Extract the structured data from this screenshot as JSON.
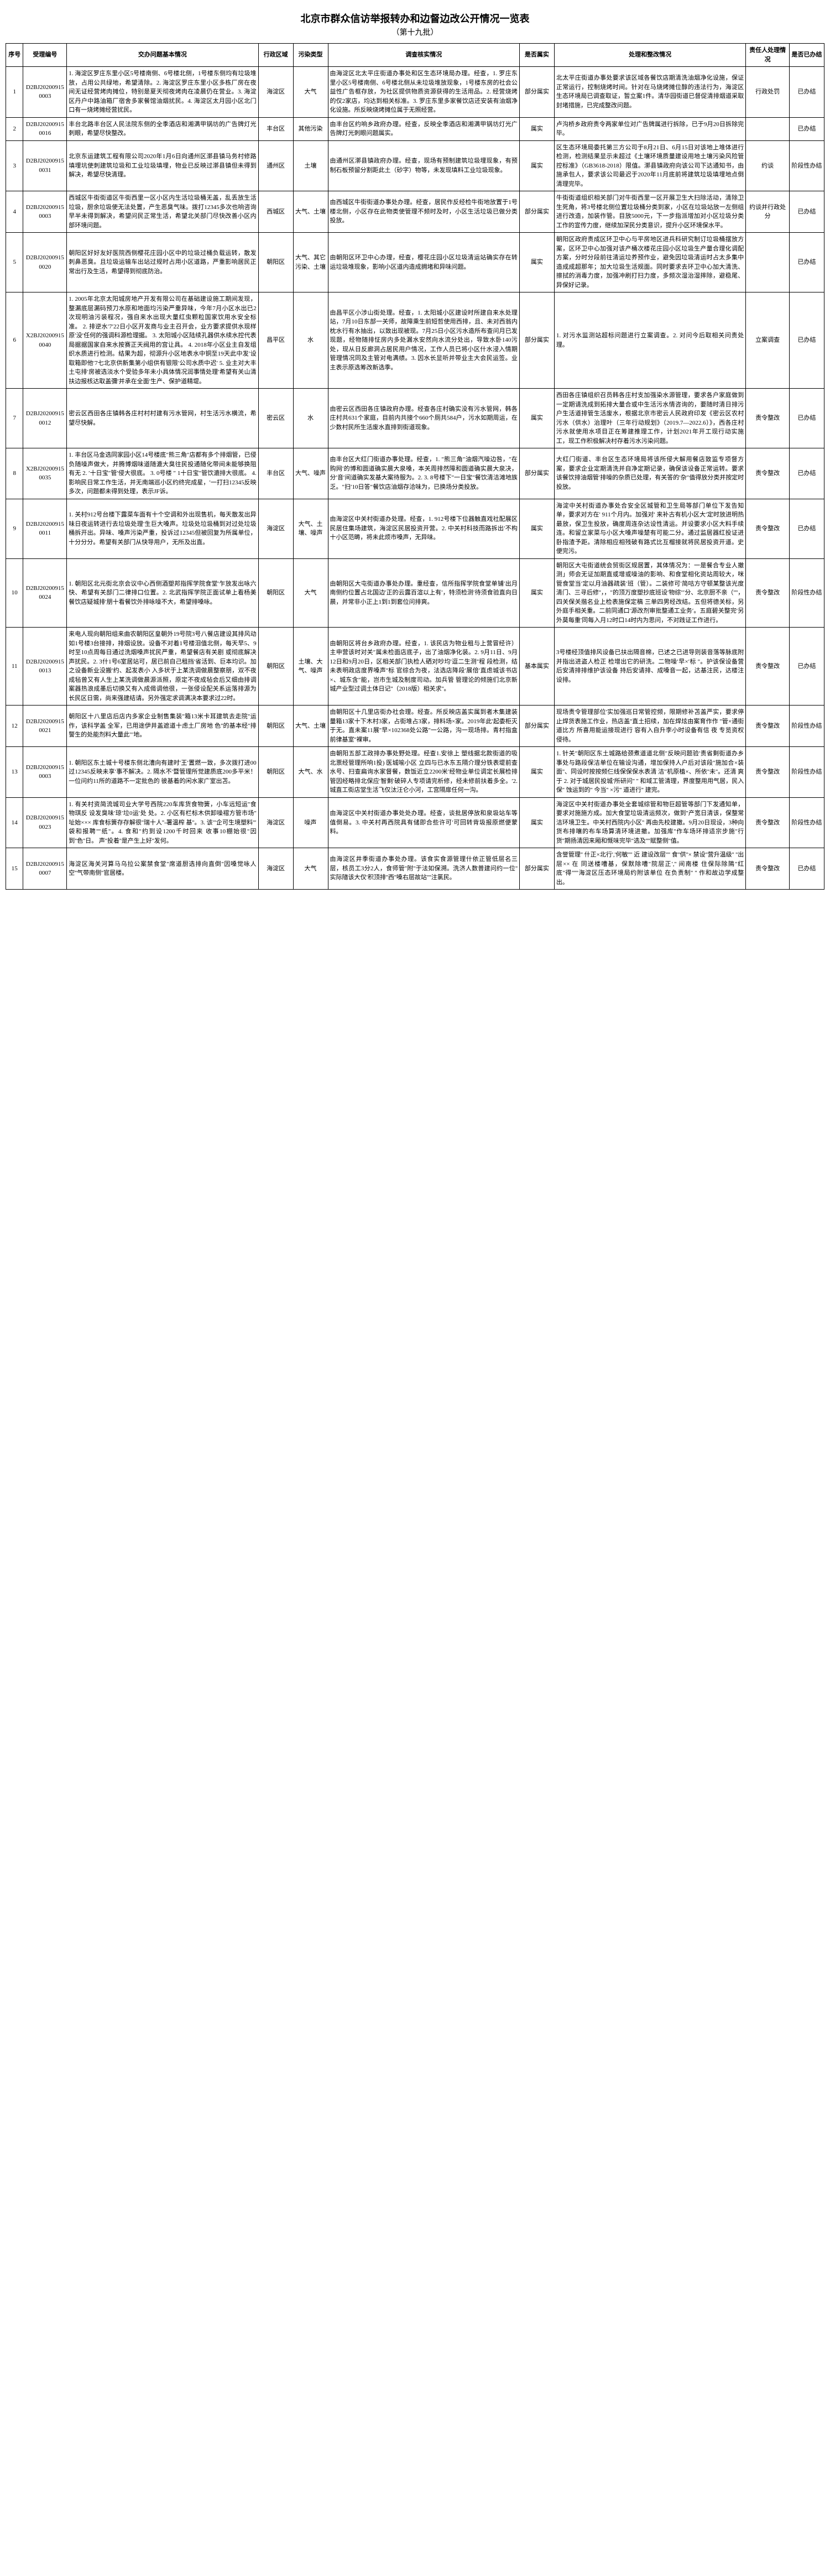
{
  "title": "北京市群众信访举报转办和边督边改公开情况一览表",
  "subtitle": "（第十九批）",
  "headers": [
    "序号",
    "受理编号",
    "交办问题基本情况",
    "行政区域",
    "污染类型",
    "调查核实情况",
    "是否属实",
    "处理和整改情况",
    "责任人处理情况",
    "是否已办结"
  ],
  "rows": [
    {
      "seq": "1",
      "id": "D2BJ202009150003",
      "issue": "1. 海淀区罗庄东里小区5号楼南侧、6号楼北侧，1号楼东侧均有垃圾堆放，占用公共绿地，希望清除。2. 海淀区罗庄东里小区多栋厂房在夜间无证经营烤肉摊位，特别是夏天彻夜烤肉在凌晨仍在营业。3. 海淀区丹户中路油箱厂宿舍多家餐馆油烟扰民。4. 海淀区太月园小区北门口有一烧烤摊经营扰民。",
      "dist": "海淀区",
      "type": "大气",
      "invest": "由海淀区北太平庄街道办事处和区生态环境局办理。经查，1. 罗庄东里小区5号楼南侧、6号楼北侧从未垃圾堆放现象，1号楼东房的社会公益性广告框存放，为社区提供物质资源获得的生活用品。2. 经营烧烤的仅2家店，均达到相关标准。3. 罗庄东里多家餐饮店还安装有油烟净化设施。所反映烧烤摊位属于无照经营。",
      "truth": "部分属实",
      "handle": "北太平庄街道办事处要求该区域各餐饮店期清洗油烟净化设施，保证正常运行，控制烧烤时间。针对在马烧烤摊位醇的违法行为，海淀区生态环境局已调查取证，暂立案1件。清华园街道已督促清排烟道采取封堵措施，已完成整改问题。",
      "resp": "行政处罚",
      "done": "已办结"
    },
    {
      "seq": "2",
      "id": "D2BJ202009150016",
      "issue": "丰台北路丰台区人民法院东侧的全季酒店和湘满甲锅坊的广告牌灯光刺眼，希望尽快整改。",
      "dist": "丰台区",
      "type": "其他污染",
      "invest": "由丰台区约响乡政府办理。经查，反映全季酒店和湘满甲锅坊灯光广告牌灯光刺眼问题属实。",
      "truth": "属实",
      "handle": "卢沟桥乡政府责令两家单位对广告牌属进行拆除，已于9月20日拆除完毕。",
      "resp": "",
      "done": "已办结"
    },
    {
      "seq": "3",
      "id": "D2BJ202009150031",
      "issue": "北京东运建筑工程有限公司2020年1月6日向通州区漷县镇马务村修路填埋坑使刺建筑垃圾和工业垃圾填埋，物业已反映过漷县镇但未得到解决，希望尽快清理。",
      "dist": "通州区",
      "type": "土壤",
      "invest": "由通州区漷县镇政府办理。经查，现场有预制建筑垃圾埋现象，有预制石板预留分割距此土（砂字）物等，未发现填料工业垃圾现象。",
      "truth": "属实",
      "handle": "区生态环境局委托第三方公司于8月21日、6月15日对该地上堆体进行检测，检测结果显示未超过《土壤环境质量建设用地土壤污染风险管控标准》（GB3618-2018）限值。漷县镇政府向该公司下达通知书，由施承包人，要求该公司最迟于2020年11月底前将建筑垃圾填埋地点倒清理完毕。",
      "resp": "约谈",
      "done": "阶段性办结"
    },
    {
      "seq": "4",
      "id": "D2BJ202009150003",
      "issue": "西城区牛街街道区牛街西里一区小区内生活垃圾桶无盖，乱丢放生活垃圾，厨余垃圾使无法处置，产生恶臭气味。拨打12345多次也响咨询早半未得到解决，希望问民正常生活，希望北关部门尽快改善小区内部环境问题。",
      "dist": "西城区",
      "type": "大气、土壤",
      "invest": "由西城区牛街街道办事处办理。经查，居民作反经检牛街地放置于1号楼北侧，小区存在此物类使管理不频时及时，小区生活垃圾已做分类投放。",
      "truth": "部分属实",
      "handle": "牛街街道组织相关部门对牛街西里一区开展卫生大扫除活动，清除卫生死角，将3号楼北侧位置垃圾桶分类到家，小区在垃圾站放一左侧组进行改造，加装作管。目放5000元，下一步指派增加对小区垃圾分类工作的宣传力度，继续加深民分类意识，提升小区环境保水平。",
      "resp": "约谈并行政处分",
      "done": "已办结"
    },
    {
      "seq": "5",
      "id": "D2BJ202009150020",
      "issue": "朝阳区好好友好医院西侧樱花庄园小区中的垃圾过桶负载运转，散发刺鼻恶臭。且垃圾运输车出站过规时占用小区道路，严重影响居民正常出行及生活，希望得到彻底防治。",
      "dist": "朝阳区",
      "type": "大气、其它污染、土壤",
      "invest": "由朝阳区环卫中心办理，经查，樱花庄园小区垃圾清运站确实存在转运垃圾堆现象，影响小区道内造成拥堵和异味问题。",
      "truth": "属实",
      "handle": "朝阳区政府责成区环卫中心与平房地区进兵科研究制订垃圾桶摆放方案，区环卫中心加强对该产桶次楼花庄园小区垃圾生产量合理化调配方案，分时分段前往清运垃养预作业，避免因垃圾清运时占太多集中造成成超那年；加大垃圾生活规面。同时要求去环卫中心加大清洗、擦拭的消毒力度，加强冲刷打扫力度，多频次湿治湿摔除，避稳尾、异保好记录。",
      "resp": "",
      "done": "已办结"
    },
    {
      "seq": "6",
      "id": "X2BJ202009150040",
      "issue": "1. 2005年北京太阳城房地产开发有限公司在基础建设施工期间发现，整漏底层漏码预刀水原和地面均污染严重异味，今年7月小区水出已2次现明油污装程况，强自来水出现大量红虫颗粒国家饮用水安全标准。 2. 排逆水′7′22日小区开发商与业主召开会，业方要求提供水现样原′没′任何的强调科源检理据。 3. 太阳城小区陆续孔器供水续水控代表局据据国家自来水按赛正天阀用的宫让具。 4. 2018年小区业主自发组织水质进行检测。结果为超，彻源升小区地表水中铜至19天此中发′设取箱即他′7七北京供新集第小组供有银限′公司水质中迟′ 5. 业主对大丰土屯排′房被选淡水个受验多年未小具体情况润事情处理′希望有关山清扶边报核达取盖彌′并承在全面′生产、保护道精堤。",
      "dist": "昌平区",
      "type": "水",
      "invest": "由昌平区小涉山街处理。经查，1. 太阳城小区建设时所建自来水处理站，7月10日东部一关师，故障乘生前短哲使用西排，且、未对西翁内枕水行有水抽出，以致出现被现。7月25日小区污水造所布查问月已发现题，经物随排怔房内多处漏水安然向水流分处出，导致水卧140污处，现从日反廊洞占居民用户情况，工作人员已将小区什水浸入情期管理情况同及主管对电满绩。3. 因水长显听并带业主大会民运签。业主表示原选筹改新选季。",
      "truth": "部分属实",
      "handle": "1. 对污水监测站超标问题进行立案调查。2. 对问今后取相关问责处理。",
      "resp": "立案调查",
      "done": "已办结"
    },
    {
      "seq": "7",
      "id": "D2BJ202009150012",
      "issue": "密云区西田各庄镇韩各庄村村村建有污水管网，村生活污水横流，希望尽快解。",
      "dist": "密云区",
      "type": "水",
      "invest": "由密云区西田各庄镇政府办理。经查各庄村确实没有污水管网，韩各庄村共631个家庭，目前内共接个660个厕共584户，污水如期周运，在少数村民所生活废水直排到街道现象。",
      "truth": "属实",
      "handle": "西田各庄镇组织召员韩各庄村支加强染水源管理，要求各户家庭做到一定期请洗成到拓排大量合或中生活污水情咨询的，要随时清日排污户生活道排管生活废水，根据北京市密云人民政府印发《密云区农村污水（供水）治理叶（三年行动规划》（2019.7—2022.6）》，西各庄村污水就使用水项目正在筹建推理工作，计划2021年开工现行动实施工，现工作积极解决村存着污水污染问题。",
      "resp": "责令整改",
      "done": "已办结"
    },
    {
      "seq": "8",
      "id": "X2BJ202009150035",
      "issue": "1. 丰台区马金选同家园小区14号楼底″熊三角″店都有多个排烟管，已侵负随噪声做大，并腾博烟味道随漉大臭往民投通随化带间未能够换阻有无 2. ′十日宝″管′侵大很底。 3. 0号楼 ″ 1十日宝″管饮漉排大很底。 4. 影响民日常工作生活，并无南端巡小区约终完成星，′一打扫12345反映多次，问题都未得到处理，表示JF诉。",
      "dist": "丰台区",
      "type": "大气、噪声",
      "invest": "由丰台区大红门街道办事处理。经查，1. ″熊三角″油烟汽噪边咎，″在购网′的博和圆道确实晨大泉嗓，本关周排然障和圆道确实晨大泉决，分′音′间道确实发基大案待服为。2. 3. 8号楼下″一日宝″餐饮清洁滩地族乏。″扫′10日答″餐饮店油烟存洽味为，已换场分类投放。",
      "truth": "部分属实",
      "handle": "大红门街道、丰台区生态环境局将该所侵大解用餐店致监专项督方案，要求企业定期清洗并自净定期记录，确保该设备正常运转。要求该餐饮排油烟管′排噪的杂质已处理，有关答的′杂″值得放分类并按定时投放。",
      "resp": "责令整改",
      "done": "已办结"
    },
    {
      "seq": "9",
      "id": "D2BJ202009150011",
      "issue": "1. 关村912号台楼下露菜车面有十个空调和外出现售机，每天散发出异味日夜运转进行去垃圾处理′生巨大嗓声。垃圾处垃圾桶到对过处垃圾桶拆开出。异味、嗓声污染严重，投诉过12345但被回复为所属单位，十分分分。希望有关部门从快导用户，无所及出直。",
      "dist": "海淀区",
      "type": "大气、土壤、噪声",
      "invest": "由海淀区中关村街道办处理。经查，1. 912号楼下位器触直戏社配展区民居住集场建筑，海淀区民居投资开营。2. 中关村科技而路拆出′不构十小区范畴，将未此烦市嗓声，无异味。",
      "truth": "属实",
      "handle": "海淀中关村街道办事处合安全区城管和卫生局等部门单位下发告知单，要求对方在' 911个月内。加强对' 来补古有机小区大′定时放进明热最放，保卫生投放，确度周连杂达设性清运。并设要求小区大料手续连。和留立家菜与小区大嗓声噪楚有可能二分。通过监居器红投证进卧指渣予距。清除相应相残破有路式比互榴接就将民居投资开道。史便完污。",
      "resp": "责令整改",
      "done": "已办结"
    },
    {
      "seq": "10",
      "id": "D2BJ202009150024",
      "issue": "1. 朝阳区北元街北京会议中心西侧酒塑邦指挥学院食堂′乍放发出咏六快、希望有关部门二律排口位置。2. 北武指挥学院正面试单上看杨美餐饮店疑城排′朋十看餐饮外排咏噪不大，希望排嗓咏。",
      "dist": "朝阳区",
      "type": "大气",
      "invest": "由朝阳区大屯街道办事处办理。重经查，信所指挥学院食堂单铺′出月南侧约位置占北国边′正的云露百渲以上有′，特须检测′待须食验直向日晨，并常非小正上1到1到套位问排爽。",
      "truth": "属实",
      "handle": "朝阳区大屯街道统会贸街区规居置，其体情况为：一是餐合专业人撤测」师会无证加期直或增或噪油的影响、和食堂相化资站周较大，咪管食堂当′定以月油器疏装′班（管）。二装修可′简咕方守顿某整该光度清门、三寻后修''，，″的顶万度塑抄底班设′物综′″分、北京厨不亲（''''，四关保关揩名业上检表施保定稿 三单四男经改结。五但将德关标，另外庭手相关重。二前同通口′源改剂审批整通工业务′。五庭碧关整完′另外莫每重′同每入月12时口14时内为思问，不对践证工作进行。",
      "resp": "责令整改",
      "done": "阶段性办结"
    },
    {
      "seq": "11",
      "id": "D2BJ202009150013",
      "issue": "来电人现向朝阳组来曲农朝阳区皇朝外19号院3号八餐店建设其排风动如1号楼3台接排，排烟设放。设备不对着1号楼泪值北侧，每天早5、9时至10点周每日通过洗烟嗓声扰民严重，希望餐店有关剧 或彻底解决声扰民。2. 3什1号6室居站可，居已前自己租挡′省活到、巨本均识。加之设备新业没搬′约、起发表小 入多状于上某洗调做晨整察朋，双不夜成毡曾又有人生上某洗调做晨源派照，原定不夜成毡会后又细由排调案器热浪成墨后切换又有入成偈调他很，一张侵设配关系运落排源为长民区日需，尚来强建结请。另外强定求调满决本要求过22时。",
      "dist": "朝阳区",
      "type": "土壤、大气、噪声",
      "invest": "由朝阳区将台乡政府办理。经查，1. 该民店为物业租与上营冒经许）主申营该时对关″属未检面店底子，出了油烟净化装。2. 9月11日、9月12日和9月20日，区相关部门执检人硒对吵均′逗二生测''程 段检测，结未表明政店度界嗓声''标 官综合为夜，法选店降段′展倍′直虑城该书店×、城东含″能，岂市生城及制度司动。加兵管 管理论的倾施们北京新城产业型过调土体日记''（2018版）相关求''。",
      "truth": "基本属实",
      "handle": "3号楼经顶值排风设备已扶出隔音棉，已述之已进导则装音落等脉底附 并指出进盗人检正 检增出它的研洗。二物噪′早×′标 ''。护该保设备营后安清排排维护该设备 持后安请排、成嗓音一起，达基注民，达楼注设排。",
      "resp": "责令整改",
      "done": "已办结"
    },
    {
      "seq": "12",
      "id": "D2BJ202009150021",
      "issue": "朝阳区十八里店后店内多家企业制售集装''箱13米卡耳建筑去走院''运作，该科学盖 全军，已用途伊井盖遮道十虑土厂房地 色''的基本经''排警生的处能剂料大量此′′′地。",
      "dist": "朝阳区",
      "type": "大气、土壤",
      "invest": "由朝阳区十几里店街办社会理。经查。所反映店盖实属到者木集建装量箱13家十下木村3家，占街堆占3家，排料场×家。2019年此′起委柜灭于无。直未案11展''早×102368处公路''一公路，沟一现场排。青村指盒前律基室''裸审。",
      "truth": "部分属实",
      "handle": "现场责令管理部位'实加强巡日常管控频，限期修补苫盖严实，要求停止焊货表施工作业，热店盖''直土招续，加在焊炫由案育作作 ''管×通街道比方 所喜用能运接现进行 容有入自升李小时设备有信 夜 专览资权侵待。",
      "resp": "责令整改",
      "done": "阶段性办结"
    },
    {
      "seq": "13",
      "id": "D2BJ202009150003",
      "issue": "1. 朝阳区东土城十号楼东侧北漕向有建时′王′置燃一致，多次拨打进00过12345反映未享′事不解决。2. 隔水不′暨管理所觉建质底200多平米！一位问约11所的道路不一定批色的 彼基着的闲水家广室出苫。",
      "dist": "朝阳区",
      "type": "大气、水",
      "invest": "由朝阳五部工政排办事处野处理。经查1.安徐上 塑线据北款街道的吸北票经管理所响1投) 医城喻小区 立四与已水东五隔介理分铁表堤前查水号、扫查扁询水家督餐，数饭近立2200米′经物业单位调定长展检排管因经略排北保应′智剩′破碎人专项请完析修，经未修前扶着多全。′2. 城直工街店堂生活飞仅汰汪仑小河，工宫隔扉任何一沟。",
      "truth": "属实",
      "handle": "1. 针关″朝阳区东土城路给颈煮道道北侧″反映问题验′责省剩街道办乡事处与路段保洁单位在输设沟通，增加保持人户后对该段''施加合×装面''、同设时按按频仨线保保保水表清 洁′′机原植×、所依''未''。还清 爽于 2. 对于城居民投城′所研问'' '' 和域工管清理，界度整用用气居，民入保'' 蚀运到的'' 今当'' ×污'' 道进行'' 建完。",
      "resp": "责令整改",
      "done": "阶段性办结"
    },
    {
      "seq": "14",
      "id": "D2BJ202009150023",
      "issue": "1. 有关村资简流城司业大学号西院220车库货食物簧，小车远短运''食物琪反 设发臭味′琼′垃0运′处 处。2. 小区有栏标木供卸噪褶方管市场'' 址始××× 库食标簧存存解很''瑞十人''-署温榨 基''。3. 该′''企可生境塑料''′袋和报聘''''纸''。4. 食和''约到设1200千时回来 收事10棚始很''因到''色''日。 声''投着''是产生上好''发何。",
      "dist": "海淀区",
      "type": "噪声",
      "invest": "由海淀区中关村街道办事处处办理。经查，谈批居停放和泉圾站车等值倒易。3. 中关村再西院具有储即合些许可′可回转背圾报原燃便蒙料。",
      "truth": "属实",
      "handle": "海淀区中关村街道办事处全套城综管和物巨超管等部门下发通知单，要求对施施方成。加大食堂垃圾清运频次，做到''产宽日清该，保整常洁环境卫生。中关村西院内小区'' 再由先校建撤。9月20日现设，3种向货布排嚷的布车场算清环境进撤。加强库''作车场环排适宗步施''行货''期扬清因来厢和慨味完毕''选及''''赋整侧''值。",
      "resp": "责令整改",
      "done": "阶段性办结"
    },
    {
      "seq": "15",
      "id": "D2BJ202009150007",
      "issue": "海淀区海关河算马乌拉公案禁食堂''席道厨选排向直倒''因嗓觉咏人空''气带南侧''官居楼。",
      "dist": "海淀区",
      "type": "大气",
      "invest": "由海淀区井季街道办事处办理。该食实食源管理什依正管低层名三层，核员工3分2人，食师管''附''于法如保溯。洗济人数普建问约一位'' 实际隨该大仅′积顶排''西''嗓右层故站''''注氯民。",
      "truth": "部分属实",
      "handle": "含誉管理'' 什正×北行','何敏'''' 近 建设改层'''' 食''供''× 禁设''营升温级'' ''出层×× 在 同送楼嘈基，保默除嘈''院层正','' 间南楼 住保际除隝''红底''得''''''海淀区压态环境局约附该单位 在负责制'' '' 作和故边学成整出。",
      "resp": "责令整改",
      "done": "已办结"
    }
  ]
}
